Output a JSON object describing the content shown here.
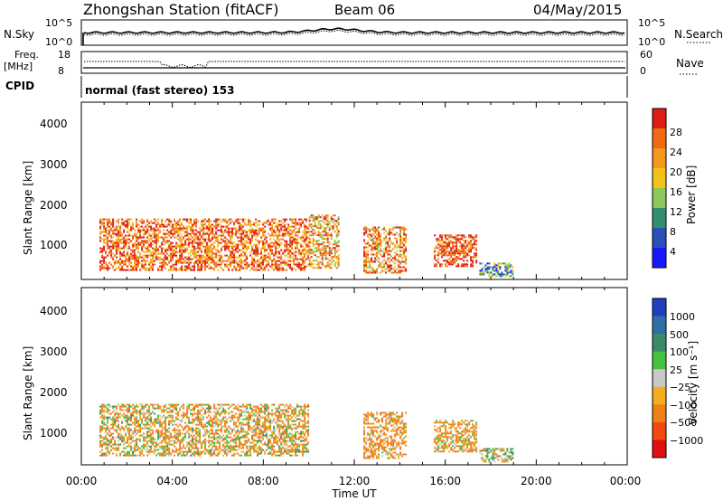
{
  "header": {
    "station": "Zhongshan Station (fitACF)",
    "beam": "Beam 06",
    "date": "04/May/2015"
  },
  "top_panels": {
    "noise": {
      "left_label": "N.Sky",
      "left_ticks": [
        "10^5",
        "10^0"
      ],
      "right_ticks": [
        "10^5",
        "10^0"
      ],
      "right_label": "N.Search"
    },
    "freq": {
      "left_label_1": "Freq.",
      "left_label_2": "[MHz]",
      "left_ticks": [
        "18",
        "8"
      ],
      "right_ticks": [
        "60",
        "0"
      ],
      "right_label": "Nave"
    },
    "cpid": {
      "label": "CPID",
      "mode": "normal (fast stereo) 153"
    }
  },
  "axes": {
    "ylabel": "Slant Range [km]",
    "xlabel": "Time UT",
    "yticks": [
      "1000",
      "2000",
      "3000",
      "4000"
    ],
    "xticks": [
      "00:00",
      "04:00",
      "08:00",
      "12:00",
      "16:00",
      "20:00",
      "00:00"
    ]
  },
  "colorbars": {
    "power": {
      "label": "Power [dB]",
      "ticks": [
        "4",
        "8",
        "12",
        "16",
        "20",
        "24",
        "28"
      ],
      "colors": [
        "#1818ff",
        "#2a4fb8",
        "#2f8f6f",
        "#8cc85a",
        "#f2c21a",
        "#f5961e",
        "#f06a12",
        "#e01c14"
      ]
    },
    "velocity": {
      "label": "Velocity [m s⁻¹]",
      "ticks": [
        "1000",
        "500",
        "100",
        "25",
        "−25",
        "−100",
        "−500",
        "−1000"
      ],
      "colors": [
        "#1f3fbf",
        "#2f6fa6",
        "#3c8a68",
        "#46c23f",
        "#c8c8c8",
        "#f2ae1e",
        "#f08018",
        "#f04a12",
        "#e01010"
      ]
    }
  },
  "chart_data": [
    {
      "type": "heatmap",
      "title": "Power",
      "xlabel": "Time UT",
      "ylabel": "Slant Range [km]",
      "xlim": [
        "00:00",
        "24:00"
      ],
      "ylim": [
        180,
        4600
      ],
      "colorbar_label": "Power [dB]",
      "colorbar_range": [
        0,
        30
      ],
      "echo_regions": [
        {
          "t_start": 0.8,
          "t_end": 10.0,
          "range_min": 400,
          "range_max": 1700,
          "value": 24
        },
        {
          "t_start": 10.0,
          "t_end": 11.3,
          "range_min": 450,
          "range_max": 1800,
          "value": 20
        },
        {
          "t_start": 12.4,
          "t_end": 14.3,
          "range_min": 350,
          "range_max": 1500,
          "value": 22
        },
        {
          "t_start": 15.5,
          "t_end": 17.4,
          "range_min": 500,
          "range_max": 1300,
          "value": 26
        },
        {
          "t_start": 17.5,
          "t_end": 19.0,
          "range_min": 280,
          "range_max": 600,
          "value": 10
        }
      ]
    },
    {
      "type": "heatmap",
      "title": "Velocity",
      "xlabel": "Time UT",
      "ylabel": "Slant Range [km]",
      "xlim": [
        "00:00",
        "24:00"
      ],
      "ylim": [
        180,
        4600
      ],
      "colorbar_label": "Velocity [m s⁻¹]",
      "colorbar_range": [
        -1000,
        1000
      ],
      "echo_regions": [
        {
          "t_start": 0.8,
          "t_end": 10.0,
          "range_min": 400,
          "range_max": 1700,
          "value": -100
        },
        {
          "t_start": 12.4,
          "t_end": 14.3,
          "range_min": 350,
          "range_max": 1500,
          "value": -200
        },
        {
          "t_start": 15.5,
          "t_end": 17.4,
          "range_min": 500,
          "range_max": 1300,
          "value": -150
        },
        {
          "t_start": 17.5,
          "t_end": 19.0,
          "range_min": 280,
          "range_max": 600,
          "value": 25
        }
      ]
    }
  ]
}
